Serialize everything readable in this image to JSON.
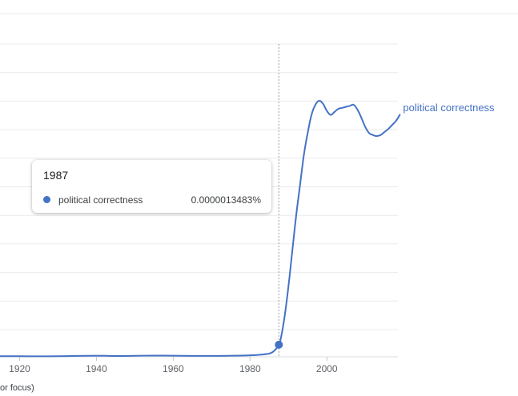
{
  "colors": {
    "series": "#4472c4",
    "grid": "#ebebeb",
    "axis": "#5f6368"
  },
  "tooltip": {
    "year": "1987",
    "series_name": "political correctness",
    "value_label": "0.0000013483%"
  },
  "footnote": "or focus)",
  "chart_data": {
    "type": "line",
    "x_ticks": [
      1920,
      1940,
      1960,
      1980,
      2000
    ],
    "xlabel": "",
    "ylabel": "",
    "hover_x": 1987.5,
    "series": [
      {
        "name": "political correctness",
        "x": [
          1900,
          1905,
          1910,
          1915,
          1920,
          1925,
          1930,
          1935,
          1940,
          1945,
          1950,
          1955,
          1960,
          1965,
          1970,
          1975,
          1980,
          1983,
          1985,
          1986,
          1987,
          1987.5,
          1988,
          1989,
          1990,
          1991,
          1992,
          1993,
          1994,
          1995,
          1996,
          1997,
          1998,
          1999,
          2000,
          2001,
          2002,
          2003,
          2004,
          2005,
          2006,
          2007,
          2008,
          2009,
          2010,
          2011,
          2012,
          2013,
          2014,
          2015,
          2016,
          2017,
          2018,
          2019
        ],
        "values": [
          0.0,
          0.2,
          0.4,
          0.6,
          0.6,
          0.5,
          0.6,
          0.9,
          1.1,
          0.8,
          1.0,
          1.2,
          1.1,
          0.9,
          0.9,
          1.1,
          1.5,
          2.2,
          3.2,
          5.0,
          9.0,
          12.0,
          18.0,
          40.0,
          70.0,
          105.0,
          140.0,
          170.0,
          200.0,
          222.0,
          240.0,
          250.0,
          254.0,
          251.0,
          244.0,
          240.0,
          243.0,
          246.0,
          247.0,
          248.0,
          249.0,
          250.0,
          245.0,
          237.0,
          228.0,
          222.0,
          220.0,
          219.0,
          220.0,
          223.0,
          226.0,
          230.0,
          234.0,
          240.0
        ]
      }
    ]
  }
}
